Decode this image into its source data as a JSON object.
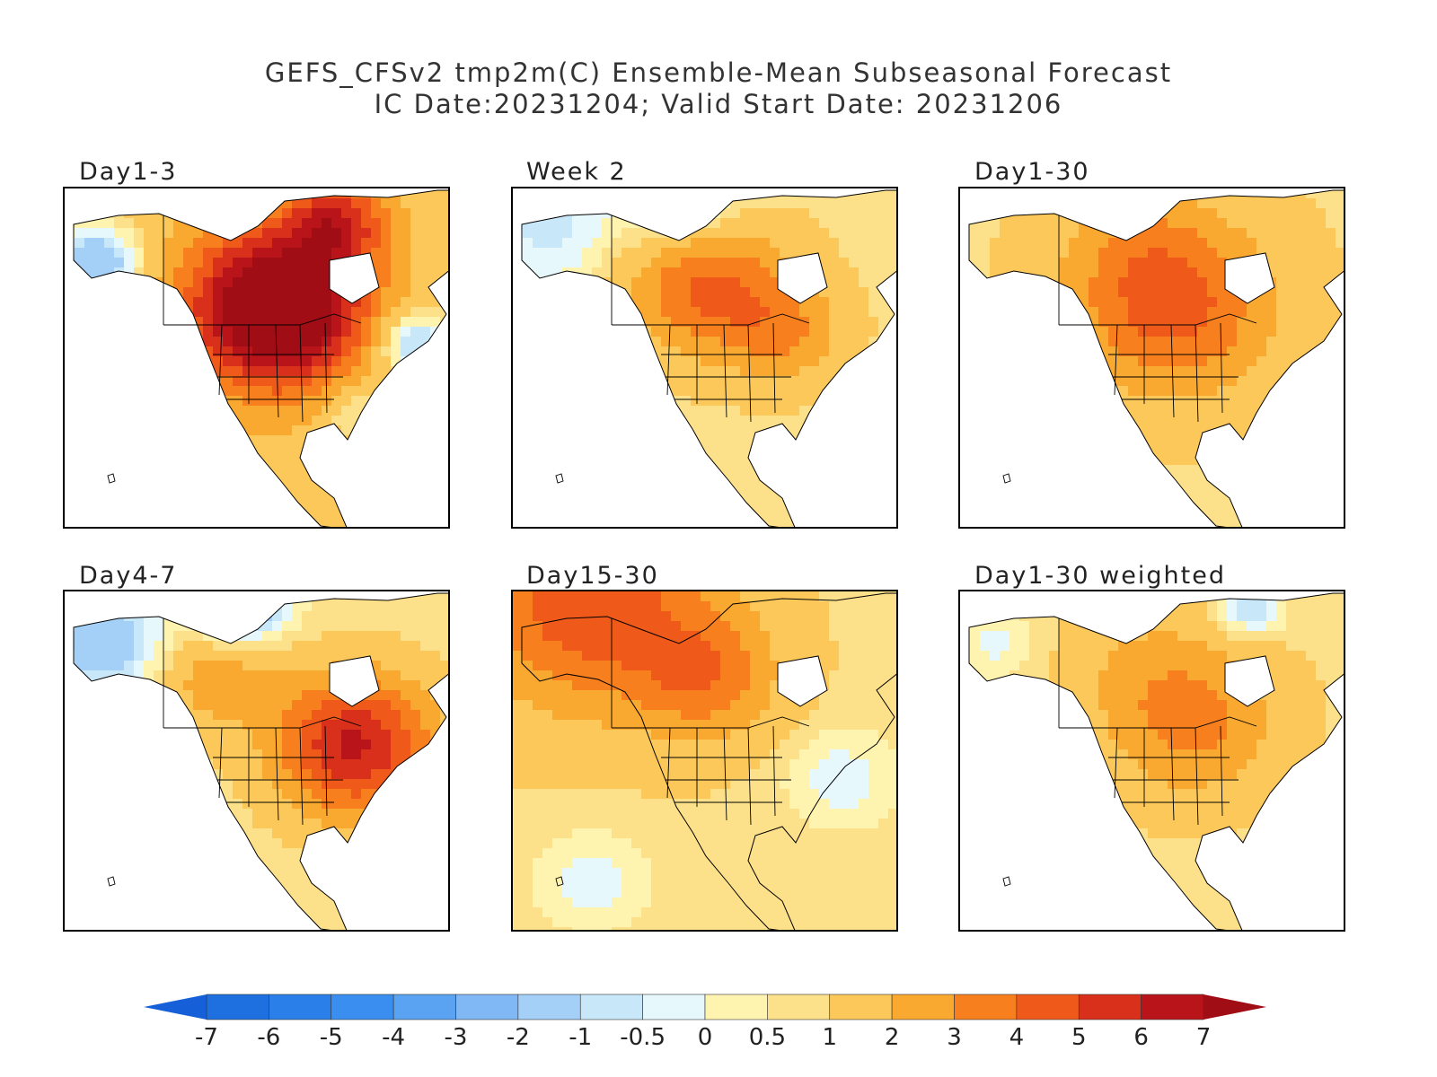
{
  "title": {
    "line1": "GEFS_CFSv2 tmp2m(C) Ensemble-Mean Subseasonal Forecast",
    "line2": "IC Date:20231204; Valid Start Date: 20231206"
  },
  "panels": [
    {
      "label": "Day1-3",
      "pattern": "day1_3"
    },
    {
      "label": "Week 2",
      "pattern": "week2"
    },
    {
      "label": "Day1-30",
      "pattern": "day1_30"
    },
    {
      "label": "Day4-7",
      "pattern": "day4_7"
    },
    {
      "label": "Day15-30",
      "pattern": "day15_30"
    },
    {
      "label": "Day1-30 weighted",
      "pattern": "day1_30w"
    }
  ],
  "colorbar": {
    "labels": [
      "-7",
      "-6",
      "-5",
      "-4",
      "-3",
      "-2",
      "-1",
      "-0.5",
      "0",
      "0.5",
      "1",
      "2",
      "3",
      "4",
      "5",
      "6",
      "7"
    ],
    "colors": [
      "#1e6fe0",
      "#2a7fe8",
      "#3a8ef0",
      "#5aa3f2",
      "#7fb8f5",
      "#a4d0f7",
      "#c8e8fa",
      "#e6f8fc",
      "#fff3b0",
      "#fde08a",
      "#fcc85a",
      "#f9a830",
      "#f77f1e",
      "#ef5a1a",
      "#d8301a",
      "#b8141a"
    ],
    "under_color": "#1560d8",
    "over_color": "#a00d14"
  }
}
